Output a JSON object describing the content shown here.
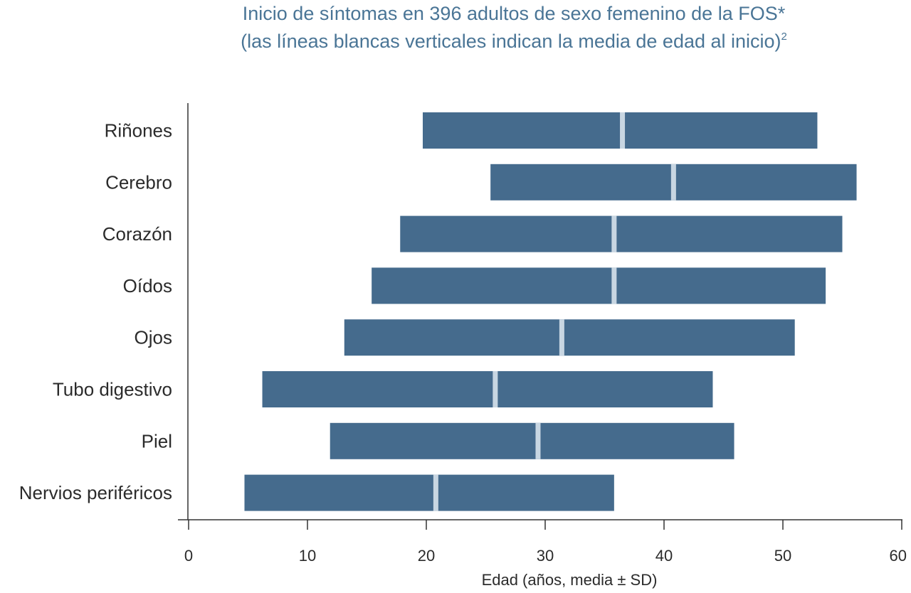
{
  "chart_data": {
    "type": "bar",
    "orientation": "horizontal",
    "title_line1": "Inicio de síntomas en 396 adultos de sexo femenino de la FOS*",
    "title_line2": "(las líneas blancas verticales indican la media de edad al inicio)",
    "title_sup": "2",
    "xlabel": "Edad (años, media ± SD)",
    "ylabel": "",
    "xlim": [
      0,
      60
    ],
    "xticks": [
      "0",
      "10",
      "20",
      "30",
      "40",
      "50",
      "60"
    ],
    "categories": [
      "Riñones",
      "Cerebro",
      "Corazón",
      "Oídos",
      "Ojos",
      "Tubo digestivo",
      "Piel",
      "Nervios periféricos"
    ],
    "series": [
      {
        "low": [
          19.7,
          25.4,
          17.8,
          15.4,
          13.1,
          6.2,
          11.9,
          4.7
        ],
        "mean": [
          36.5,
          40.8,
          35.8,
          35.8,
          31.4,
          25.8,
          29.4,
          20.8
        ],
        "high": [
          52.9,
          56.2,
          55.0,
          53.6,
          51.0,
          44.1,
          45.9,
          35.8
        ]
      }
    ],
    "bar_color": "#456b8d",
    "mean_line_color": "#c8d6e2",
    "title_color": "#4a7596",
    "grid": false,
    "legend": "none"
  }
}
